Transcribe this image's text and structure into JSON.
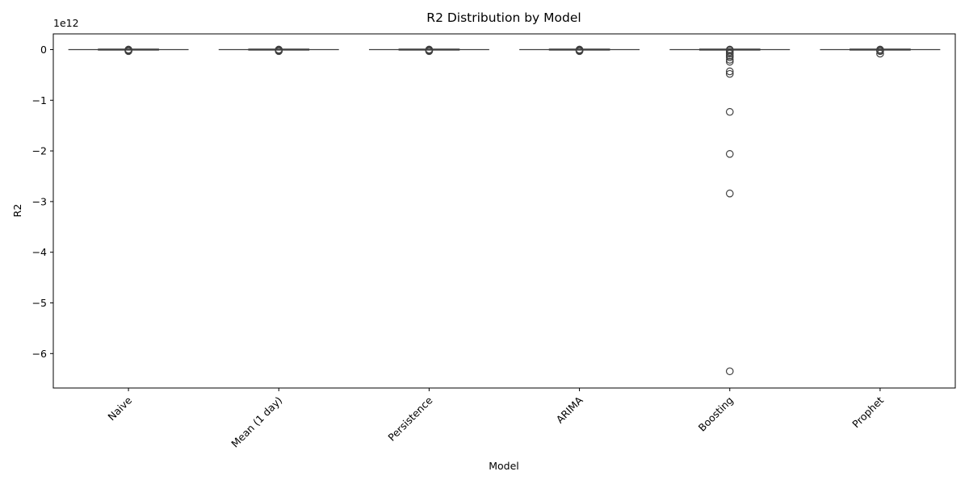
{
  "chart_data": {
    "type": "box",
    "title": "R2 Distribution by Model",
    "xlabel": "Model",
    "ylabel": "R2",
    "y_offset_label": "1e12",
    "y_scale_factor": 1000000000000.0,
    "ylim": [
      -6.68,
      0.31
    ],
    "yticks": [
      0,
      -1,
      -2,
      -3,
      -4,
      -5,
      -6
    ],
    "ytick_labels": [
      "0",
      "−1",
      "−2",
      "−3",
      "−4",
      "−5",
      "−6"
    ],
    "grid": false,
    "legend": "none",
    "categories": [
      "Naive",
      "Mean (1 day)",
      "Persistence",
      "ARIMA",
      "Boosting",
      "Prophet"
    ],
    "boxes": [
      {
        "name": "Naive",
        "q1": 0,
        "median": 0,
        "q3": 0,
        "whisker_low": 0,
        "whisker_high": 0,
        "outliers": [
          0,
          -0.01,
          -0.02,
          -0.03
        ]
      },
      {
        "name": "Mean (1 day)",
        "q1": 0,
        "median": 0,
        "q3": 0,
        "whisker_low": 0,
        "whisker_high": 0,
        "outliers": [
          0,
          -0.01,
          -0.02,
          -0.03
        ]
      },
      {
        "name": "Persistence",
        "q1": 0,
        "median": 0,
        "q3": 0,
        "whisker_low": 0,
        "whisker_high": 0,
        "outliers": [
          0,
          -0.01,
          -0.02,
          -0.03
        ]
      },
      {
        "name": "ARIMA",
        "q1": 0,
        "median": 0,
        "q3": 0,
        "whisker_low": 0,
        "whisker_high": 0,
        "outliers": [
          0,
          -0.01,
          -0.02,
          -0.03
        ]
      },
      {
        "name": "Boosting",
        "q1": 0,
        "median": 0,
        "q3": 0,
        "whisker_low": 0,
        "whisker_high": 0,
        "outliers": [
          0,
          -0.02,
          -0.05,
          -0.08,
          -0.12,
          -0.15,
          -0.2,
          -0.24,
          -0.43,
          -0.48,
          -1.23,
          -2.06,
          -2.84,
          -6.35
        ]
      },
      {
        "name": "Prophet",
        "q1": 0,
        "median": 0,
        "q3": 0,
        "whisker_low": 0,
        "whisker_high": 0,
        "outliers": [
          0,
          -0.01,
          -0.03,
          -0.08
        ]
      }
    ],
    "colors": {
      "box_fill": "#ffffff",
      "box_edge": "#3f3f3f",
      "outlier_edge": "#3f3f3f",
      "axes": "#000000"
    }
  }
}
